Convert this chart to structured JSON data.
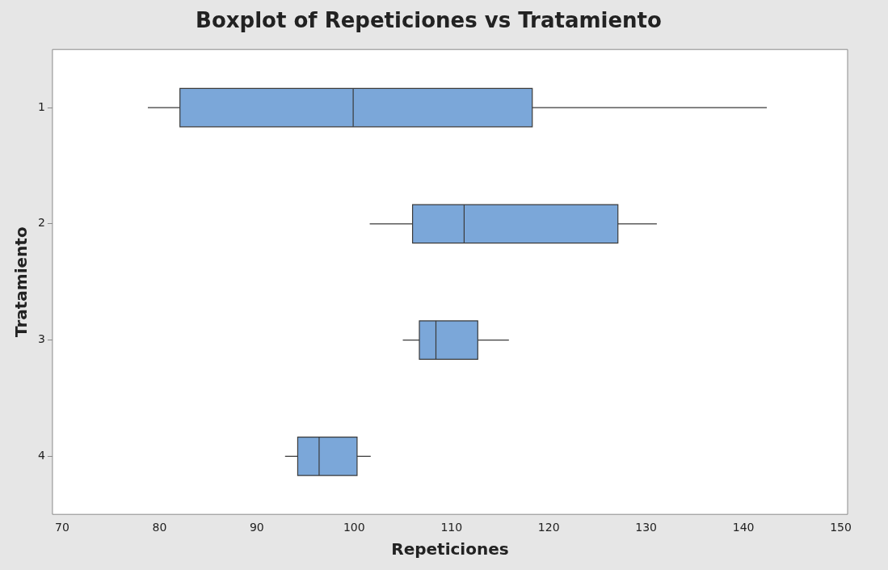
{
  "chart_data": {
    "type": "box",
    "title": "Boxplot of Repeticiones vs Tratamiento",
    "xlabel": "Repeticiones",
    "ylabel": "Tratamiento",
    "orientation": "horizontal",
    "categories": [
      "1",
      "2",
      "3",
      "4"
    ],
    "color": "#7ba7d9",
    "boxes": [
      {
        "low": 78.8,
        "q1": 82.1,
        "median": 99.9,
        "q3": 118.3,
        "high": 142.4
      },
      {
        "low": 101.6,
        "q1": 106.0,
        "median": 111.3,
        "q3": 127.1,
        "high": 131.1
      },
      {
        "low": 105.0,
        "q1": 106.7,
        "median": 108.4,
        "q3": 112.7,
        "high": 115.9
      },
      {
        "low": 92.9,
        "q1": 94.2,
        "median": 96.4,
        "q3": 100.3,
        "high": 101.7
      }
    ],
    "xlim": [
      69,
      150.7
    ],
    "xticks": [
      70,
      80,
      90,
      100,
      110,
      120,
      130,
      140,
      150
    ]
  }
}
